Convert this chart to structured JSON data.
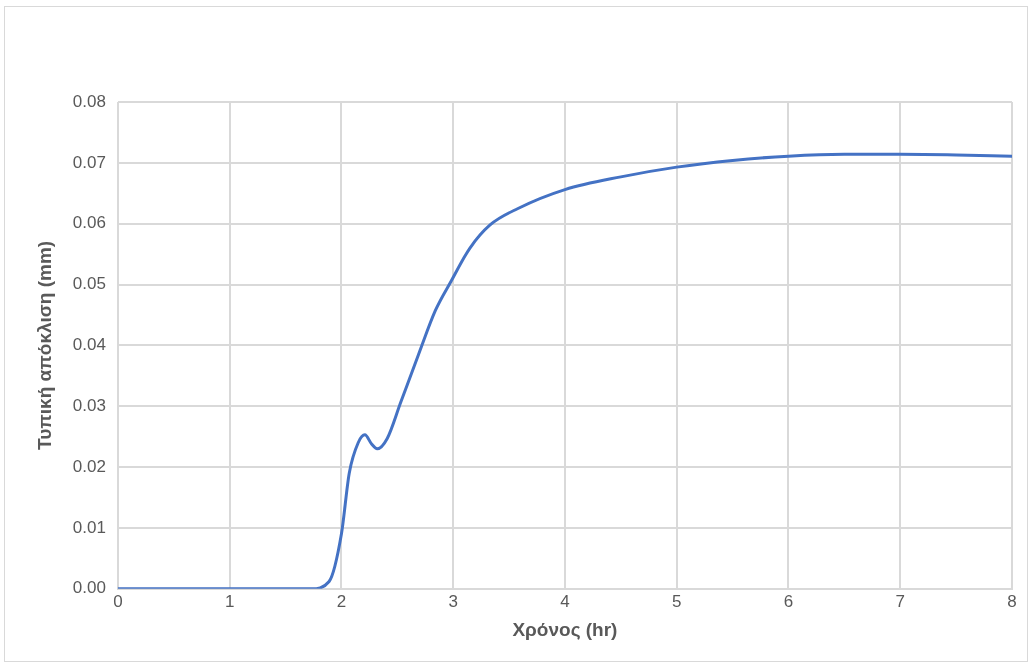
{
  "chart_data": {
    "type": "line",
    "xlabel": "Χρόνος (hr)",
    "ylabel": "Τυπική απόκλιση (mm)",
    "x": [
      0,
      1,
      1.5,
      1.73,
      1.89,
      2.0,
      2.07,
      2.15,
      2.21,
      2.27,
      2.32,
      2.41,
      2.53,
      2.69,
      2.84,
      2.98,
      3.15,
      3.33,
      3.58,
      4.0,
      4.5,
      5,
      5.5,
      6,
      6.5,
      7,
      7.5,
      8
    ],
    "series": [
      {
        "color": "#4472c4",
        "values": [
          0,
          0,
          0,
          0,
          0.0012,
          0.009,
          0.019,
          0.024,
          0.0253,
          0.0238,
          0.023,
          0.0247,
          0.0306,
          0.0385,
          0.0457,
          0.0505,
          0.056,
          0.0598,
          0.0625,
          0.0656,
          0.0677,
          0.0693,
          0.0704,
          0.0711,
          0.0714,
          0.0714,
          0.0713,
          0.0711
        ]
      }
    ],
    "xlim": [
      0,
      8
    ],
    "xticks": [
      0,
      1,
      2,
      3,
      4,
      5,
      6,
      7,
      8
    ],
    "ylim": [
      0,
      0.08
    ],
    "yticks": [
      {
        "value": 0,
        "label": "0.00"
      },
      {
        "value": 0.01,
        "label": "0.01"
      },
      {
        "value": 0.02,
        "label": "0.02"
      },
      {
        "value": 0.03,
        "label": "0.03"
      },
      {
        "value": 0.04,
        "label": "0.04"
      },
      {
        "value": 0.05,
        "label": "0.05"
      },
      {
        "value": 0.06,
        "label": "0.06"
      },
      {
        "value": 0.07,
        "label": "0.07"
      },
      {
        "value": 0.08,
        "label": "0.08"
      }
    ],
    "grid": true,
    "legend": false,
    "marker": "none",
    "line_style": "solid"
  }
}
